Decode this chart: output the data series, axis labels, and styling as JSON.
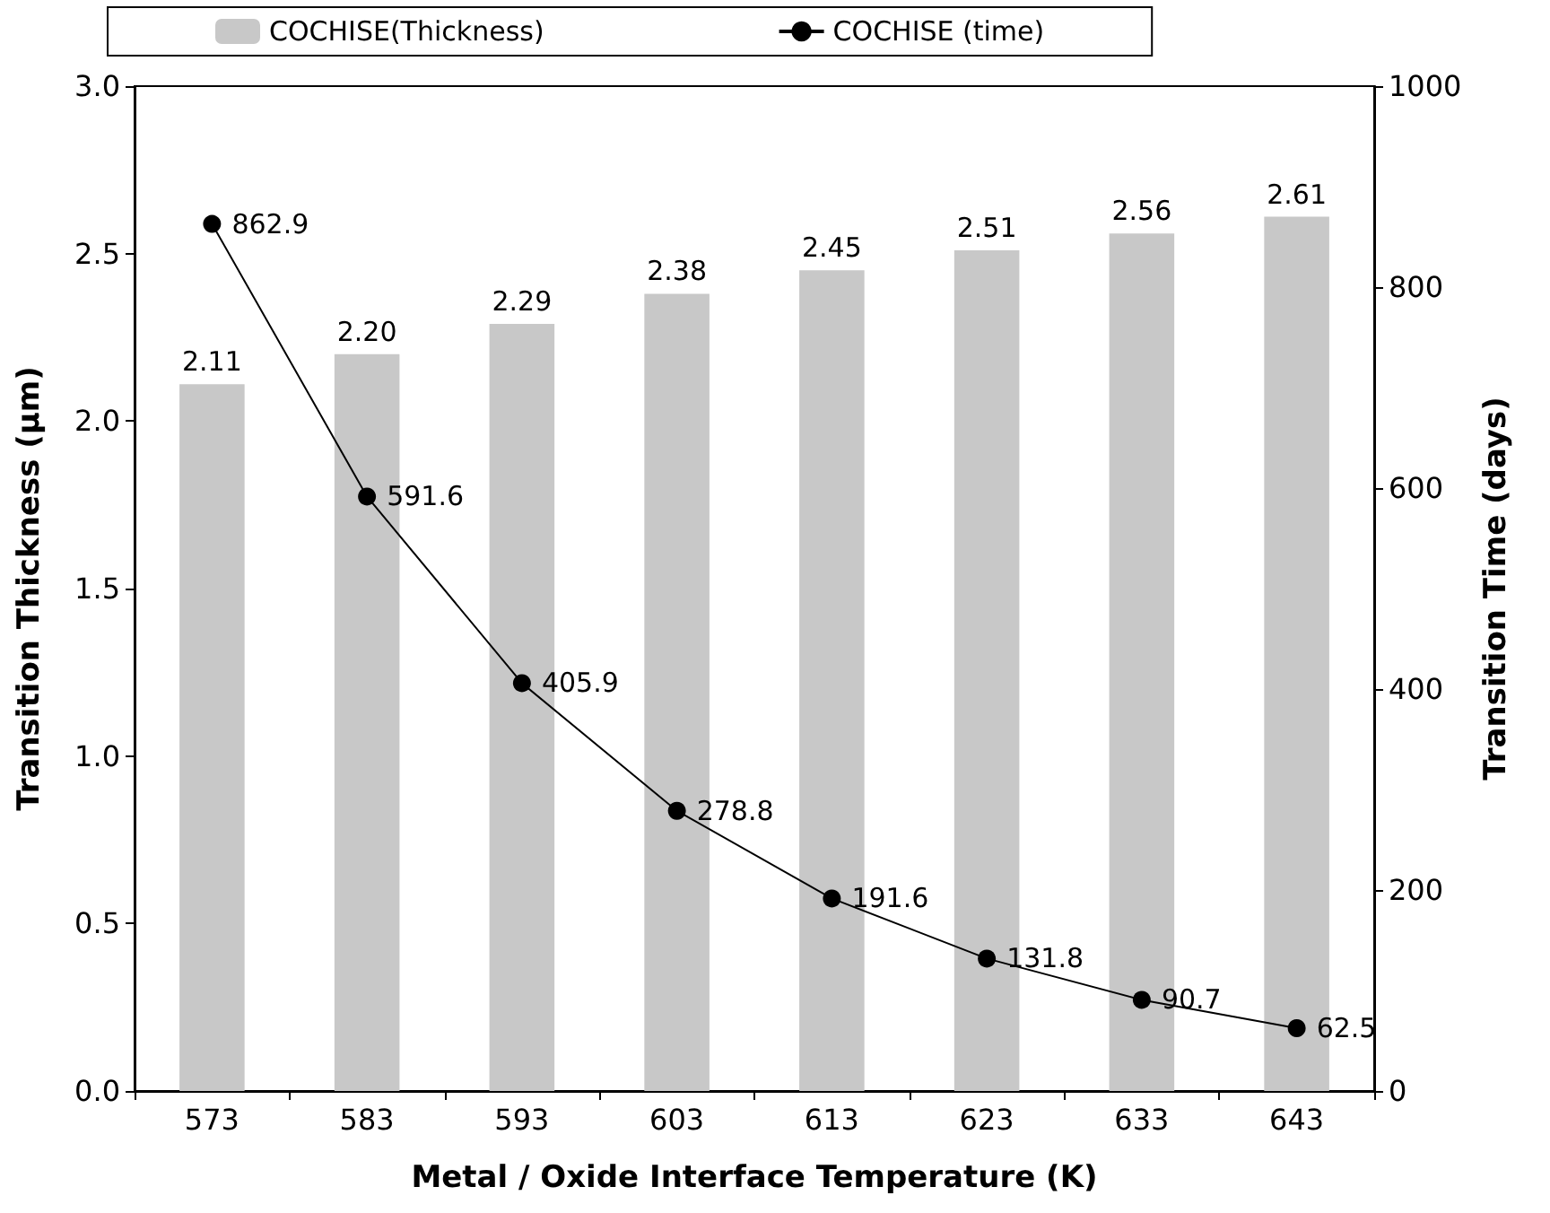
{
  "chart_data": {
    "type": "bar",
    "xlabel": "Metal / Oxide Interface Temperature (K)",
    "ylabel": "Transition Thickness (μm)",
    "y2label": "Transition Time (days)",
    "categories": [
      "573",
      "583",
      "593",
      "603",
      "613",
      "623",
      "633",
      "643"
    ],
    "series": [
      {
        "name": "COCHISE(Thickness)",
        "color": "#c8c8c8",
        "values": [
          2.11,
          2.2,
          2.29,
          2.38,
          2.45,
          2.51,
          2.56,
          2.61
        ],
        "value_labels": [
          "2.11",
          "2.20",
          "2.29",
          "2.38",
          "2.45",
          "2.51",
          "2.56",
          "2.61"
        ]
      },
      {
        "name": "COCHISE (time)",
        "type": "line",
        "axis": "y2",
        "color": "#000000",
        "marker": "circle",
        "values": [
          862.9,
          591.6,
          405.9,
          278.8,
          191.6,
          131.8,
          90.7,
          62.5
        ],
        "value_labels": [
          "862.9",
          "591.6",
          "405.9",
          "278.8",
          "191.6",
          "131.8",
          "90.7",
          "62.5"
        ]
      }
    ],
    "ylim": [
      0,
      3
    ],
    "yticks": [
      {
        "value": 0,
        "label": "0.0"
      },
      0.5,
      {
        "value": 1,
        "label": "1.0"
      },
      1.5,
      {
        "value": 2,
        "label": "2.0"
      },
      2.5,
      {
        "value": 3,
        "label": "3.0"
      }
    ],
    "y2lim": [
      0,
      1000
    ],
    "y2ticks": [
      0,
      200,
      400,
      600,
      800,
      1000
    ],
    "legend": "top",
    "grid": false
  }
}
